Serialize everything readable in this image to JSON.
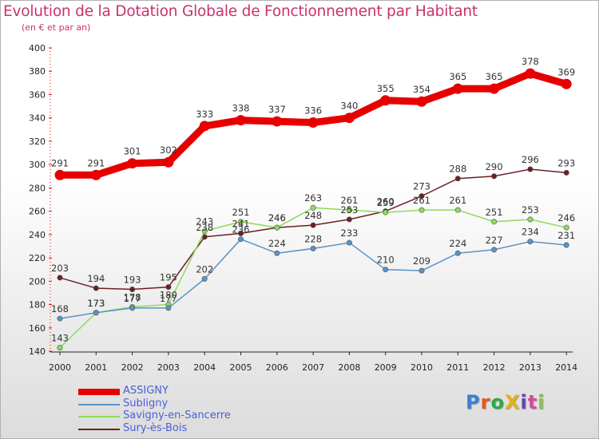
{
  "title": "Evolution de la Dotation Globale de Fonctionnement par Habitant",
  "subtitle": "(en € et par an)",
  "logo": {
    "text": "ProXiti",
    "colors": [
      "#3a7fd5",
      "#e35a1a",
      "#2ea84a",
      "#e3b21a",
      "#6a3fb5",
      "#d94a9a",
      "#8bc34a"
    ]
  },
  "chart_data": {
    "type": "line",
    "title": "Evolution de la Dotation Globale de Fonctionnement par Habitant",
    "subtitle": "(en € et par an)",
    "xlabel": "",
    "ylabel": "",
    "categories": [
      "2000",
      "2001",
      "2002",
      "2003",
      "2004",
      "2005",
      "2006",
      "2007",
      "2008",
      "2009",
      "2010",
      "2011",
      "2012",
      "2013",
      "2014"
    ],
    "ylim": [
      140,
      400
    ],
    "yticks": [
      140,
      160,
      180,
      200,
      220,
      240,
      260,
      280,
      300,
      320,
      340,
      360,
      380,
      400
    ],
    "grid": false,
    "legend": "bottom-left",
    "series": [
      {
        "name": "ASSIGNY",
        "color": "#e60000",
        "bold": true,
        "values": [
          291,
          291,
          301,
          302,
          333,
          338,
          337,
          336,
          340,
          355,
          354,
          365,
          365,
          378,
          369
        ]
      },
      {
        "name": "Subligny",
        "color": "#5b93c7",
        "bold": false,
        "values": [
          168,
          173,
          177,
          177,
          202,
          236,
          224,
          228,
          233,
          210,
          209,
          224,
          227,
          234,
          231
        ]
      },
      {
        "name": "Savigny-en-Sancerre",
        "color": "#8bdc5b",
        "bold": false,
        "values": [
          143,
          173,
          178,
          180,
          243,
          251,
          246,
          263,
          261,
          259,
          261,
          261,
          251,
          253,
          246
        ]
      },
      {
        "name": "Sury-ès-Bois",
        "color": "#6b1f24",
        "bold": false,
        "values": [
          203,
          194,
          193,
          195,
          238,
          241,
          246,
          248,
          253,
          260,
          273,
          288,
          290,
          296,
          293
        ]
      }
    ]
  }
}
